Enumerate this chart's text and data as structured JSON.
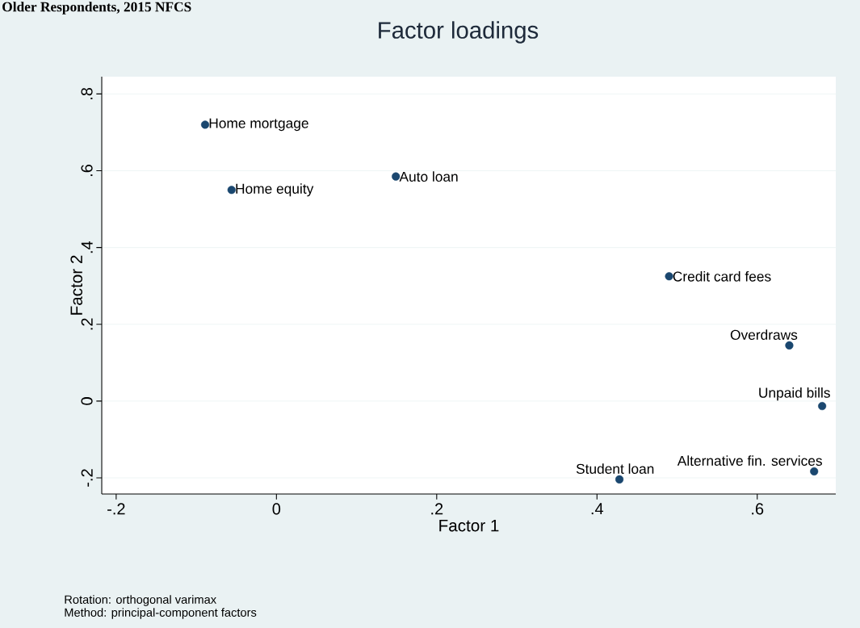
{
  "chart_data": {
    "type": "scatter",
    "subtitle": "Older Respondents, 2015 NFCS",
    "title": "Factor loadings",
    "xlabel": "Factor 1",
    "ylabel": "Factor 2",
    "x": [
      -0.089,
      -0.056,
      0.149,
      0.49,
      0.64,
      0.681,
      0.671,
      0.428
    ],
    "values": [
      0.72,
      0.55,
      0.585,
      0.325,
      0.145,
      -0.013,
      -0.183,
      -0.204
    ],
    "color": "#1a476f",
    "marker": "circle",
    "grid": "y",
    "xlim": [
      -0.218,
      0.698
    ],
    "ylim": [
      -0.242,
      0.845
    ],
    "xticks": [
      {
        "value": -0.2,
        "label": "-.2"
      },
      0,
      {
        "value": 0.2,
        "label": ".2"
      },
      {
        "value": 0.4,
        "label": ".4"
      },
      {
        "value": 0.6,
        "label": ".6"
      }
    ],
    "yticks": [
      {
        "value": -0.2,
        "label": "-.2"
      },
      0,
      {
        "value": 0.2,
        "label": ".2"
      },
      {
        "value": 0.4,
        "label": ".4"
      },
      {
        "value": 0.6,
        "label": ".6"
      },
      {
        "value": 0.8,
        "label": ".8"
      }
    ],
    "annotations": [
      {
        "text": "Home mortgage",
        "x": -0.089,
        "y": 0.72
      },
      {
        "text": "Home equity",
        "x": -0.056,
        "y": 0.55
      },
      {
        "text": "Auto loan",
        "x": 0.149,
        "y": 0.585
      },
      {
        "text": "Credit card fees",
        "x": 0.49,
        "y": 0.325
      },
      {
        "text": "Overdraws",
        "x": 0.64,
        "y": 0.145
      },
      {
        "text": "Unpaid bills",
        "x": 0.681,
        "y": -0.013
      },
      {
        "text": "Alternative fin. services",
        "x": 0.671,
        "y": -0.183
      },
      {
        "text": "Student loan",
        "x": 0.428,
        "y": -0.204
      },
      "Rotation: orthogonal varimax",
      "Method: principal-component factors"
    ]
  }
}
